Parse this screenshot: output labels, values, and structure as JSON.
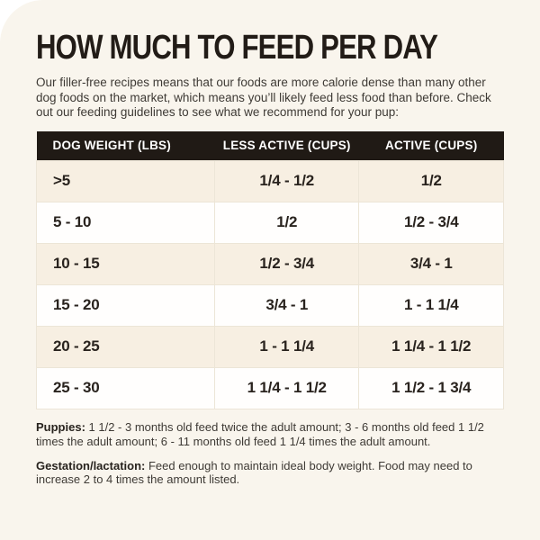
{
  "colors": {
    "page_bg": "#ffffff",
    "card_bg": "#f9f5ed",
    "table_header_bg": "#201a15",
    "table_header_text": "#ffffff",
    "row_beige": "#f7efe2",
    "row_white": "#fffefd",
    "title_text": "#221c17",
    "body_text": "#3e3a35"
  },
  "header": {
    "title": "HOW MUCH TO FEED PER DAY",
    "intro": "Our filler-free recipes means that our foods are more calorie dense than many other dog foods on the market, which means you’ll likely feed less food than before. Check out our feeding guidelines to see what we recommend for your pup:"
  },
  "table": {
    "columns": [
      "DOG WEIGHT (LBS)",
      "LESS ACTIVE (CUPS)",
      "ACTIVE (CUPS)"
    ],
    "rows": [
      [
        ">5",
        "1/4 - 1/2",
        "1/2"
      ],
      [
        "5 - 10",
        "1/2",
        "1/2 - 3/4"
      ],
      [
        "10 - 15",
        "1/2 - 3/4",
        "3/4 - 1"
      ],
      [
        "15 - 20",
        "3/4 - 1",
        "1 - 1 1/4"
      ],
      [
        "20 - 25",
        "1 - 1 1/4",
        "1 1/4 - 1 1/2"
      ],
      [
        "25 - 30",
        "1 1/4 - 1 1/2",
        "1 1/2 - 1 3/4"
      ]
    ]
  },
  "notes": [
    {
      "label": "Puppies:",
      "text": "1 1/2 - 3 months old feed twice the adult amount; 3 - 6 months old feed 1 1/2 times the adult amount; 6 - 11 months old feed 1 1/4 times the adult amount."
    },
    {
      "label": "Gestation/lactation:",
      "text": "Feed enough to maintain ideal body weight. Food may need to increase 2 to 4 times the amount listed."
    }
  ]
}
